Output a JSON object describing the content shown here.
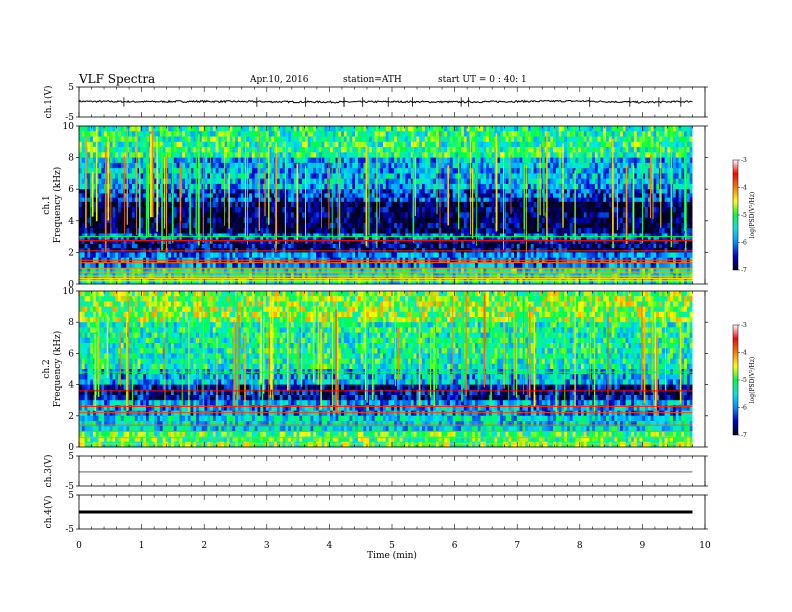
{
  "header": {
    "title": "VLF Spectra",
    "date": "Apr.10, 2016",
    "station": "station=ATH",
    "start": "start  UT =   0 : 40: 1"
  },
  "chart_data": [
    {
      "type": "line",
      "ylabel": "ch.1(V)",
      "ylim": [
        -5,
        5
      ],
      "yticks": [
        "5",
        "-5"
      ],
      "x": [
        0,
        1,
        2,
        3,
        4,
        5,
        6,
        7,
        8,
        9,
        9.8
      ],
      "y": [
        0.2,
        0.1,
        0.2,
        0.1,
        0.0,
        0.1,
        0.0,
        0.2,
        0.3,
        -0.1,
        0.2
      ],
      "grid": false
    },
    {
      "type": "heatmap",
      "ylabel": "ch.1",
      "ylabel2": "Frequency  (kHz)",
      "ylim": [
        0,
        10
      ],
      "yticks": [
        "10",
        "8",
        "6",
        "4",
        "2",
        "0"
      ],
      "xlim": [
        0,
        10
      ],
      "colorbar": {
        "label": "log(PSD(V²/Hz)",
        "range": [
          -7,
          -3
        ],
        "ticks": [
          "-3",
          "-4",
          "-5",
          "-6",
          "-7"
        ]
      },
      "rows": [
        {
          "f": [
            8.0,
            10.0
          ],
          "level": -5.2
        },
        {
          "f": [
            6.0,
            8.0
          ],
          "level": -5.8
        },
        {
          "f": [
            5.2,
            6.0
          ],
          "level": -6.3
        },
        {
          "f": [
            3.2,
            5.2
          ],
          "level": -6.9
        },
        {
          "f": [
            2.8,
            3.2
          ],
          "level": -6.2
        },
        {
          "f": [
            2.0,
            2.8
          ],
          "level": -6.7
        },
        {
          "f": [
            1.0,
            2.0
          ],
          "level": -6.0
        },
        {
          "f": [
            0.0,
            1.0
          ],
          "level": -5.4
        }
      ],
      "lines_khz": [
        3.0,
        2.75,
        2.1,
        1.5,
        1.35,
        1.0,
        0.75,
        0.5,
        0.35,
        0.2
      ]
    },
    {
      "type": "heatmap",
      "ylabel": "ch.2",
      "ylabel2": "Frequency  (kHz)",
      "ylim": [
        0,
        10
      ],
      "yticks": [
        "10",
        "8",
        "6",
        "4",
        "2",
        "0"
      ],
      "xlim": [
        0,
        10
      ],
      "colorbar": {
        "label": "log(PSD(V²/Hz)",
        "range": [
          -7,
          -3
        ],
        "ticks": [
          "-3",
          "-4",
          "-5",
          "-6",
          "-7"
        ]
      },
      "rows": [
        {
          "f": [
            8.0,
            10.0
          ],
          "level": -4.8
        },
        {
          "f": [
            5.0,
            8.0
          ],
          "level": -5.3
        },
        {
          "f": [
            4.0,
            5.0
          ],
          "level": -5.8
        },
        {
          "f": [
            3.0,
            4.0
          ],
          "level": -6.6
        },
        {
          "f": [
            2.0,
            3.0
          ],
          "level": -5.9
        },
        {
          "f": [
            1.0,
            2.0
          ],
          "level": -5.6
        },
        {
          "f": [
            0.0,
            1.0
          ],
          "level": -5.0
        }
      ],
      "lines_khz": [
        4.8,
        3.6,
        2.6,
        2.2,
        1.4,
        1.0,
        0.6,
        0.2
      ]
    },
    {
      "type": "line",
      "ylabel": "ch.3(V)",
      "ylim": [
        -5,
        5
      ],
      "yticks": [
        "5",
        "-5"
      ],
      "x": [
        0,
        9.8
      ],
      "y": [
        -0.3,
        -0.3
      ],
      "grid": false
    },
    {
      "type": "line",
      "ylabel": "ch.4(V)",
      "ylim": [
        -5,
        5
      ],
      "yticks": [
        "5",
        "-5"
      ],
      "x": [
        0,
        9.8
      ],
      "y": [
        0.0,
        0.0
      ],
      "grid": false
    }
  ],
  "xaxis": {
    "label": "Time  (min)",
    "xlim": [
      0,
      10
    ],
    "ticks": [
      "0",
      "1",
      "2",
      "3",
      "4",
      "5",
      "6",
      "7",
      "8",
      "9",
      "10"
    ]
  },
  "colors": {
    "colormap": [
      "#000020",
      "#0000c8",
      "#0090ff",
      "#00e8e8",
      "#00ff40",
      "#ffff00",
      "#ff8000",
      "#ff0000",
      "#ffffff"
    ]
  }
}
